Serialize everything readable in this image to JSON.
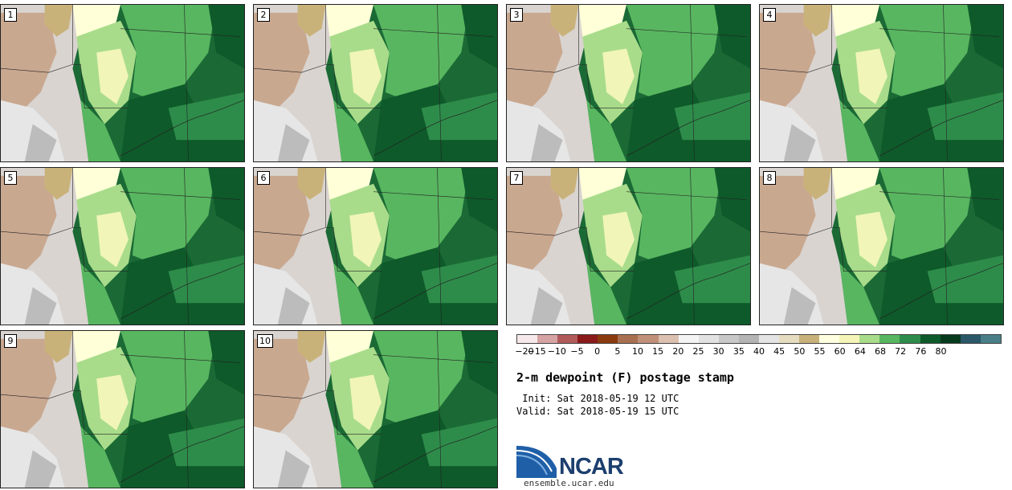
{
  "members": [
    {
      "label": "1"
    },
    {
      "label": "2"
    },
    {
      "label": "3"
    },
    {
      "label": "4"
    },
    {
      "label": "5"
    },
    {
      "label": "6"
    },
    {
      "label": "7"
    },
    {
      "label": "8"
    },
    {
      "label": "9"
    },
    {
      "label": "10"
    }
  ],
  "colorbar": {
    "colors": [
      "#f7e9e9",
      "#d6a3a3",
      "#b05a5a",
      "#8b1a1a",
      "#8b3a0e",
      "#a87050",
      "#c09078",
      "#dcc0b0",
      "#f4f4f4",
      "#e2e2e2",
      "#c8c8c8",
      "#b4b4b4",
      "#e4e4e4",
      "#e6dcc0",
      "#c9b27a",
      "#ffffe0",
      "#f5f5b8",
      "#a8dc8a",
      "#58b660",
      "#2e8c4a",
      "#0e5a2a",
      "#063a1c",
      "#2a5868",
      "#4a7e88"
    ],
    "ticks": [
      "−20",
      "−15",
      "−10",
      "−5",
      "0",
      "5",
      "10",
      "15",
      "20",
      "25",
      "30",
      "35",
      "40",
      "45",
      "50",
      "55",
      "60",
      "64",
      "68",
      "72",
      "76",
      "80"
    ]
  },
  "title": "2-m dewpoint (F) postage stamp",
  "init_line": " Init: Sat 2018-05-19 12 UTC",
  "valid_line": "Valid: Sat 2018-05-19 15 UTC",
  "logo": {
    "text": "NCAR",
    "url": "ensemble.ucar.edu"
  }
}
